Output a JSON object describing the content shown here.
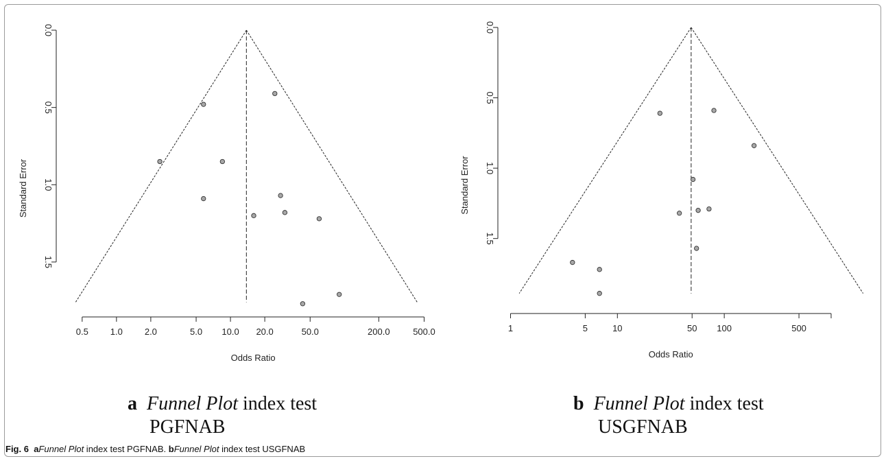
{
  "panels": [
    {
      "id": "a",
      "letter": "a",
      "caption_italic": "Funnel Plot",
      "caption_rest": " index test",
      "caption_line2": "PGFNAB"
    },
    {
      "id": "b",
      "letter": "b",
      "caption_italic": "Funnel Plot",
      "caption_rest": " index test",
      "caption_line2": "USGFNAB"
    }
  ],
  "figure_caption": {
    "label": "Fig. 6",
    "a_letter": "a",
    "a_italic": "Funnel Plot",
    "a_rest": " index test PGFNAB. ",
    "b_letter": "b",
    "b_italic": "Funnel Plot",
    "b_rest": " index test USGFNAB"
  },
  "chart_data": [
    {
      "type": "scatter",
      "title": "",
      "xlabel": "Odds Ratio",
      "ylabel": "Standard Error",
      "x_scale": "log",
      "xlim": [
        0.38,
        620
      ],
      "ylim": [
        0.0,
        1.78
      ],
      "y_reversed": true,
      "xticks": [
        0.5,
        1.0,
        2.0,
        5.0,
        10.0,
        20.0,
        50.0,
        200.0,
        500.0
      ],
      "xtick_labels": [
        "0.5",
        "1.0",
        "2.0",
        "5.0",
        "10.0",
        "20.0",
        "50.0",
        "200.0",
        "500.0"
      ],
      "yticks": [
        0.0,
        0.5,
        1.0,
        1.5
      ],
      "ytick_labels": [
        "0.0",
        "0.5",
        "1.0",
        "1.5"
      ],
      "summary_or": 13.8,
      "funnel_base_se": 1.76,
      "points": [
        {
          "x": 24.5,
          "y": 0.41
        },
        {
          "x": 5.8,
          "y": 0.48
        },
        {
          "x": 2.4,
          "y": 0.85
        },
        {
          "x": 8.5,
          "y": 0.85
        },
        {
          "x": 5.8,
          "y": 1.09
        },
        {
          "x": 27.5,
          "y": 1.07
        },
        {
          "x": 16.0,
          "y": 1.2
        },
        {
          "x": 30.0,
          "y": 1.18
        },
        {
          "x": 60.0,
          "y": 1.22
        },
        {
          "x": 90.0,
          "y": 1.71
        },
        {
          "x": 43.0,
          "y": 1.77
        }
      ]
    },
    {
      "type": "scatter",
      "title": "",
      "xlabel": "Odds Ratio",
      "ylabel": "Standard Error",
      "x_scale": "log",
      "xlim": [
        0.95,
        2500
      ],
      "ylim": [
        0.0,
        1.95
      ],
      "y_reversed": true,
      "xticks": [
        1,
        5,
        10,
        50,
        100,
        500
      ],
      "xtick_labels": [
        "1",
        "5",
        "10",
        "50",
        "100",
        "500"
      ],
      "extra_xticks": [
        1000
      ],
      "yticks": [
        0.0,
        0.5,
        1.0,
        1.5
      ],
      "ytick_labels": [
        "0.0",
        "0.5",
        "1.0",
        "1.5"
      ],
      "summary_or": 49,
      "funnel_base_se": 1.89,
      "points": [
        {
          "x": 25,
          "y": 0.61
        },
        {
          "x": 80,
          "y": 0.59
        },
        {
          "x": 190,
          "y": 0.84
        },
        {
          "x": 51,
          "y": 1.08
        },
        {
          "x": 38,
          "y": 1.32
        },
        {
          "x": 57,
          "y": 1.3
        },
        {
          "x": 72,
          "y": 1.29
        },
        {
          "x": 55,
          "y": 1.57
        },
        {
          "x": 3.8,
          "y": 1.67
        },
        {
          "x": 6.8,
          "y": 1.72
        },
        {
          "x": 6.8,
          "y": 1.89
        }
      ]
    }
  ],
  "colors": {
    "point_fill": "#a8a8a8",
    "point_stroke": "#333333",
    "line": "#222222",
    "axis": "#222222"
  }
}
